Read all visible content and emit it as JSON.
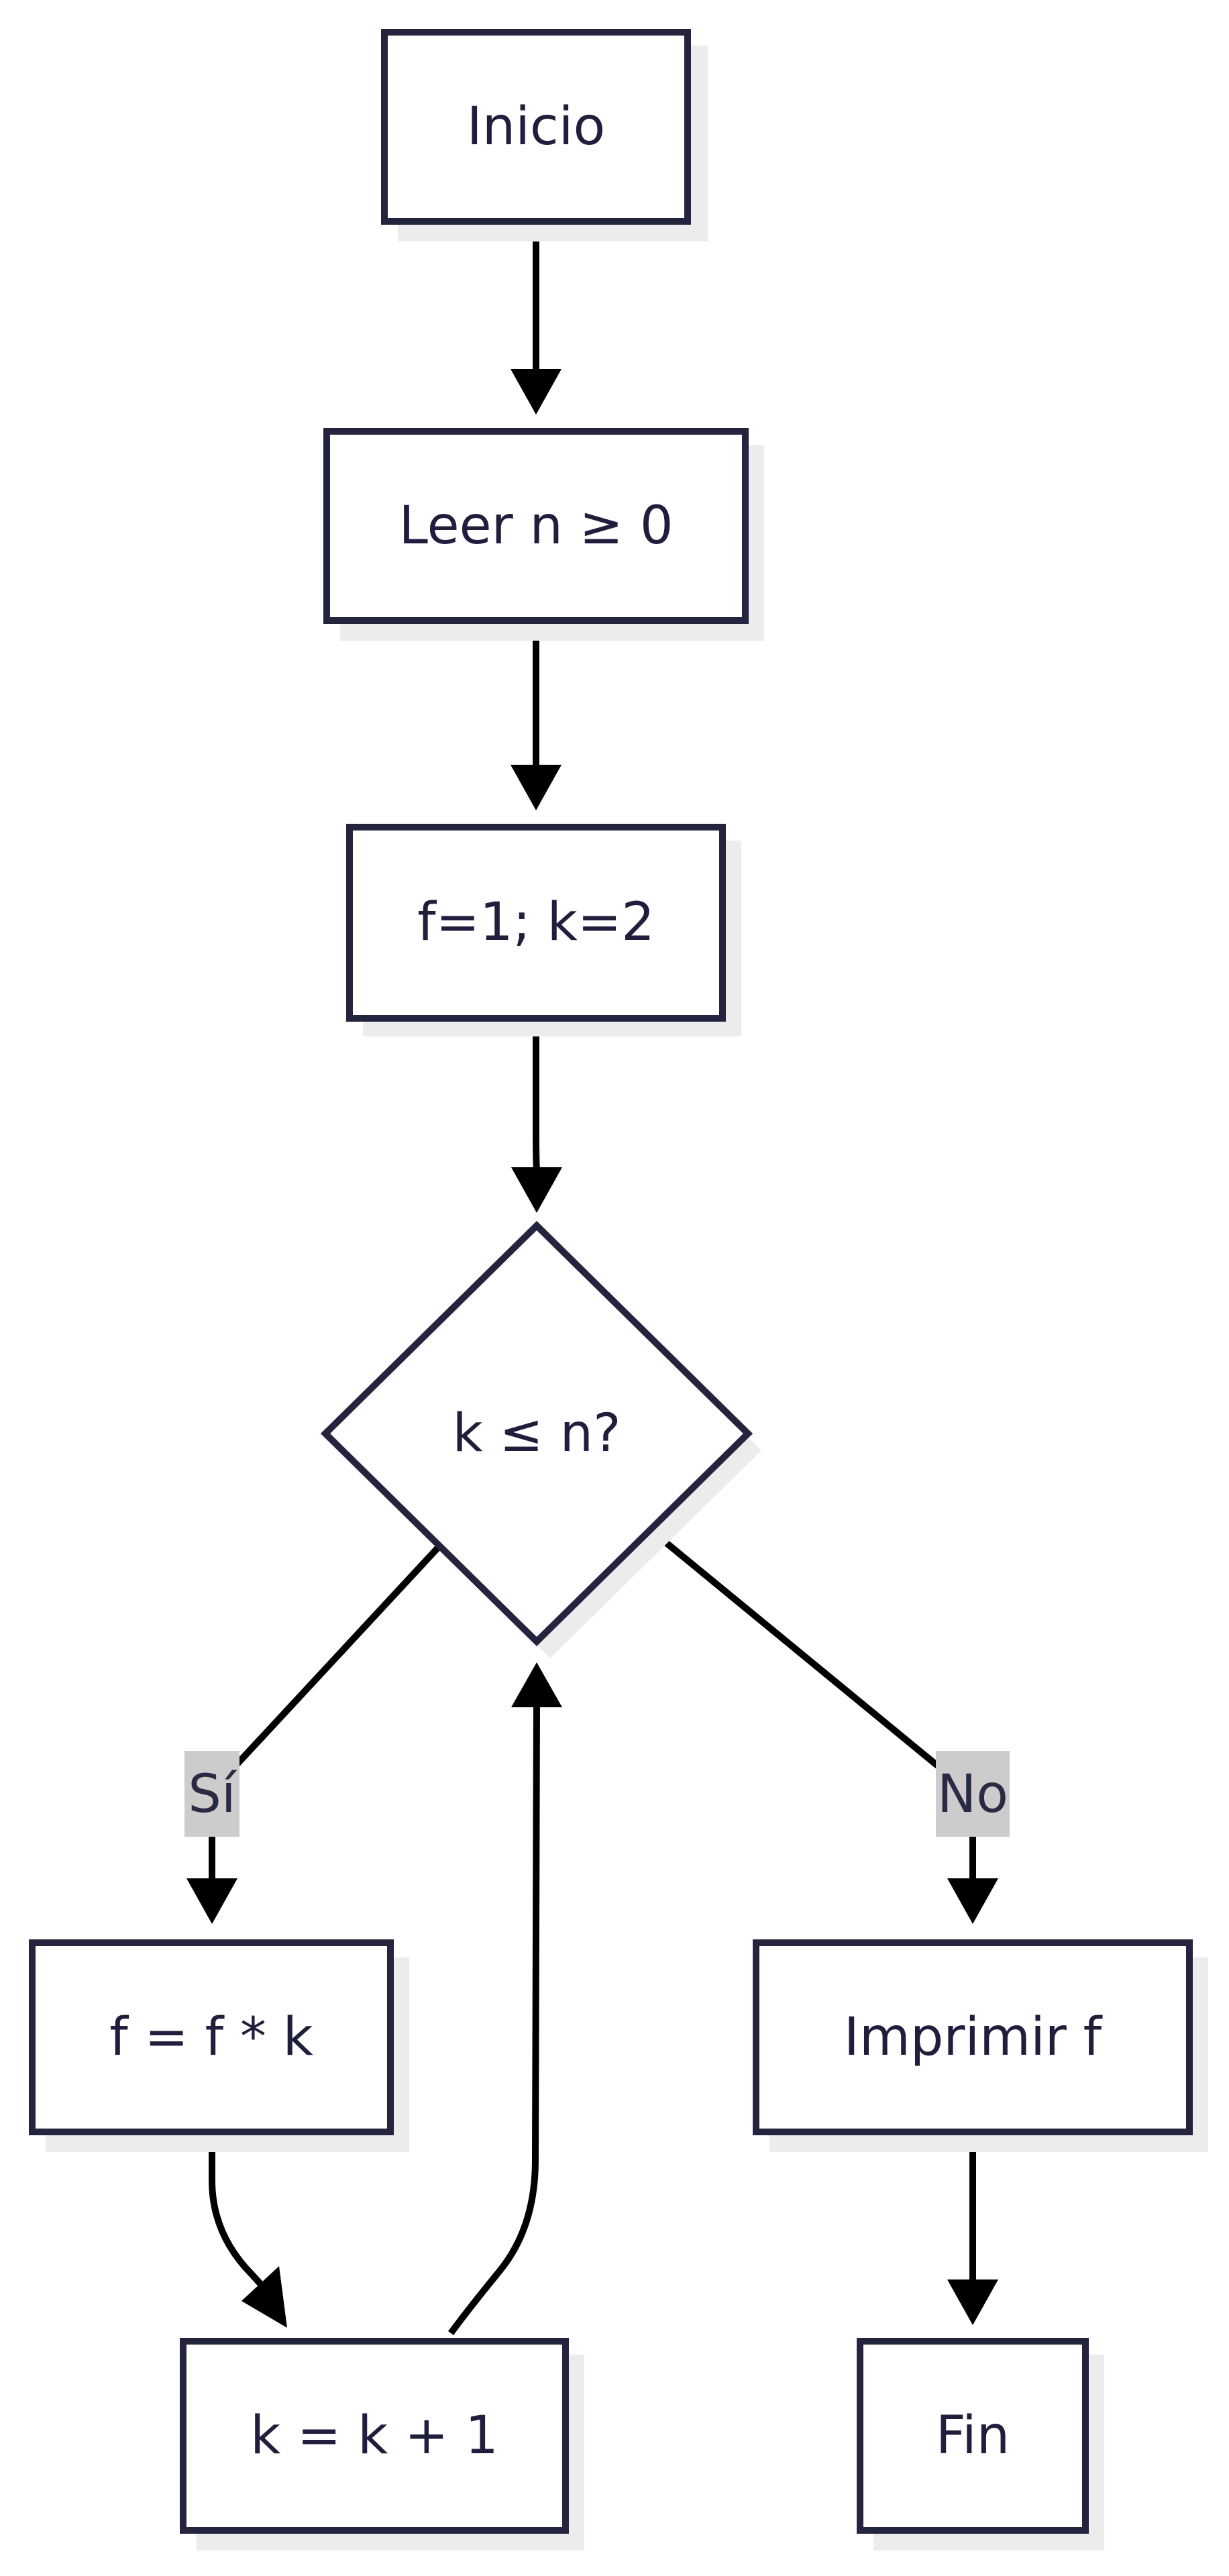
{
  "diagram": {
    "type": "flowchart",
    "nodes": {
      "start": "Inicio",
      "read": "Leer n ≥ 0",
      "init": "f=1; k=2",
      "decision": "k ≤ n?",
      "multiply": "f = f * k",
      "increment": "k = k + 1",
      "print": "Imprimir f",
      "end": "Fin"
    },
    "edge_labels": {
      "yes": "Sí",
      "no": "No"
    },
    "edges": [
      {
        "from": "start",
        "to": "read"
      },
      {
        "from": "read",
        "to": "init"
      },
      {
        "from": "init",
        "to": "decision"
      },
      {
        "from": "decision",
        "to": "multiply",
        "label": "yes"
      },
      {
        "from": "decision",
        "to": "print",
        "label": "no"
      },
      {
        "from": "multiply",
        "to": "increment"
      },
      {
        "from": "increment",
        "to": "decision"
      },
      {
        "from": "print",
        "to": "end"
      }
    ],
    "colors": {
      "node_stroke": "#24243e",
      "node_fill": "#ffffff",
      "shadow": "#ececec",
      "edge": "#000000",
      "label_bg": "#cccccc",
      "text": "#1f1f3d"
    }
  }
}
